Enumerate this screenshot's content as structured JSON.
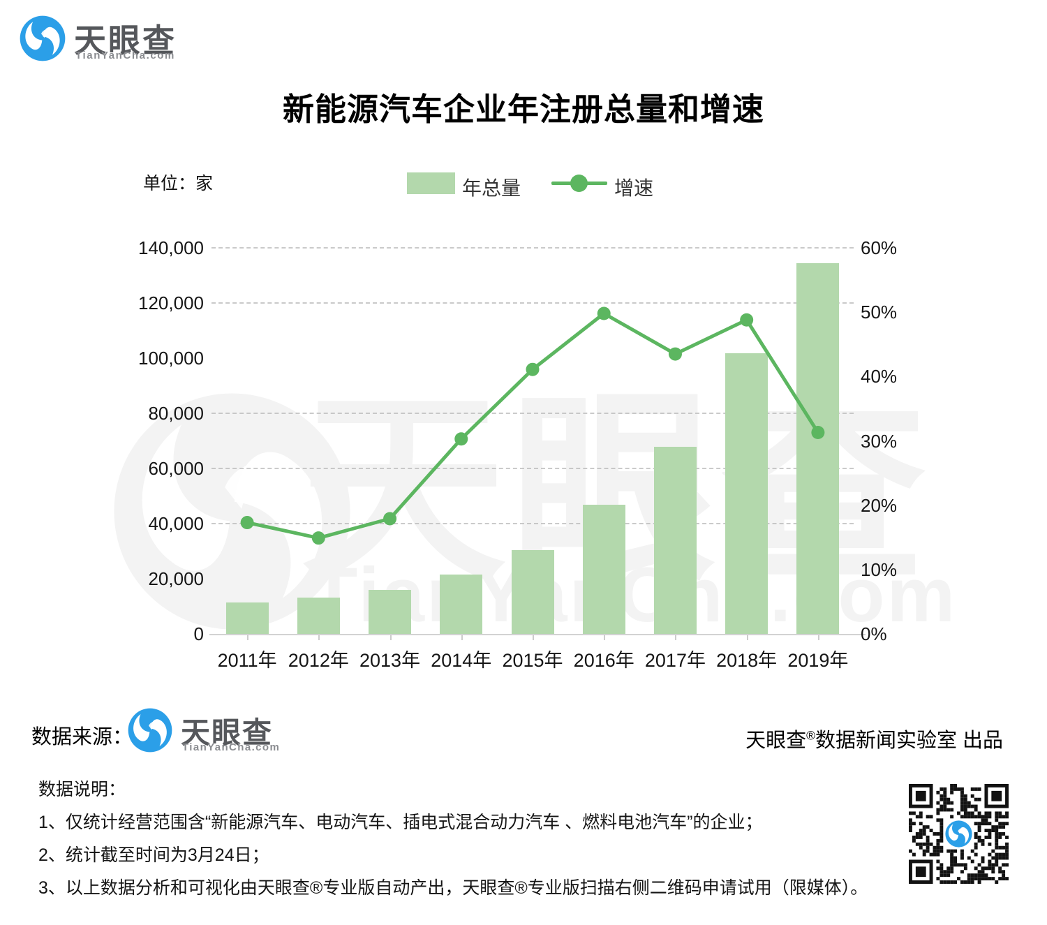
{
  "header_logo": {
    "brand": "天眼查",
    "domain": "TianYanCha.com"
  },
  "title": "新能源汽车企业年注册总量和增速",
  "unit_label": "单位：家",
  "legend": {
    "bar_label": "年总量",
    "line_label": "增速"
  },
  "watermark": {
    "text": "天眼查",
    "subtext": "TianYanCha.com"
  },
  "source_row": {
    "prefix": "数据来源：",
    "logo_brand": "天眼查",
    "logo_domain": "TianYanCha.com",
    "producer": {
      "brand": "天眼查",
      "reg": "®",
      "rest": "数据新闻实验室 出品"
    }
  },
  "notes": {
    "heading": "数据说明：",
    "items": [
      "1、仅统计经营范围含“新能源汽车、电动汽车、插电式混合动力汽车 、燃料电池汽车”的企业；",
      "2、统计截至时间为3月24日；",
      "3、以上数据分析和可视化由天眼查®专业版自动产出，天眼查®专业版扫描右侧二维码申请试用（限媒体）。"
    ]
  },
  "colors": {
    "bar": "#b3d8ac",
    "line": "#5cb660",
    "grid": "#b9b9b9",
    "axis": "#d2d2d2",
    "logo_blue": "#2b9fe8",
    "watermark": "#f3f3f3"
  },
  "chart_data": {
    "type": "bar+line (dual axis)",
    "categories": [
      "2011年",
      "2012年",
      "2013年",
      "2014年",
      "2015年",
      "2016年",
      "2017年",
      "2018年",
      "2019年"
    ],
    "series": [
      {
        "name": "年总量",
        "type": "bar",
        "axis": "left",
        "unit": "家",
        "values": [
          11400,
          13200,
          16000,
          21400,
          30400,
          46800,
          67900,
          101800,
          134500
        ]
      },
      {
        "name": "增速",
        "type": "line",
        "axis": "right",
        "unit": "%",
        "values": [
          17.3,
          14.9,
          17.9,
          30.3,
          41.1,
          49.8,
          43.5,
          48.8,
          31.3
        ]
      }
    ],
    "title": "新能源汽车企业年注册总量和增速",
    "xlabel": "",
    "ylabel_left": "单位：家",
    "left_axis": {
      "min": 0,
      "max": 140000,
      "step": 20000,
      "tick_labels": [
        "0",
        "20,000",
        "40,000",
        "60,000",
        "80,000",
        "100,000",
        "120,000",
        "140,000"
      ]
    },
    "right_axis": {
      "min": 0,
      "max": 60,
      "step": 10,
      "tick_labels": [
        "0%",
        "10%",
        "20%",
        "30%",
        "40%",
        "50%",
        "60%"
      ]
    },
    "gridlines_left_values": [
      140000,
      120000,
      80000,
      60000,
      40000
    ],
    "grid": "horizontal dashed",
    "legend_position": "top-center"
  }
}
